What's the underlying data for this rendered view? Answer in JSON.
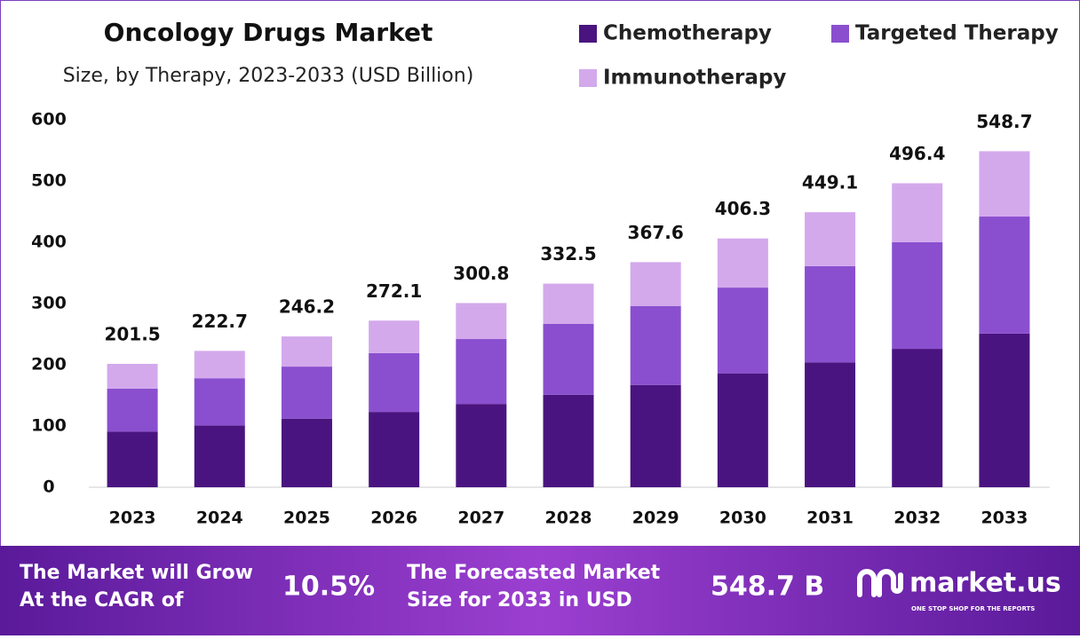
{
  "chart_data": {
    "type": "stacked-bar",
    "title": "Oncology Drugs Market",
    "subtitle": "Size, by Therapy, 2023-2033 (USD Billion)",
    "categories": [
      "2023",
      "2024",
      "2025",
      "2026",
      "2027",
      "2028",
      "2029",
      "2030",
      "2031",
      "2032",
      "2033"
    ],
    "series": [
      {
        "name": "Chemotherapy",
        "color": "#4a1480",
        "values": [
          91,
          101,
          112,
          123,
          136,
          151,
          167,
          186,
          204,
          226,
          251
        ]
      },
      {
        "name": "Targeted Therapy",
        "color": "#8a4fcf",
        "values": [
          70,
          77,
          85,
          96,
          106,
          116,
          129,
          140,
          157,
          174,
          191
        ]
      },
      {
        "name": "Immunotherapy",
        "color": "#d3a9ec",
        "values": [
          40.5,
          44.7,
          49.2,
          53.1,
          58.8,
          65.5,
          71.6,
          80.3,
          88.1,
          96.4,
          106.7
        ]
      }
    ],
    "totals": [
      201.5,
      222.7,
      246.2,
      272.1,
      300.8,
      332.5,
      367.6,
      406.3,
      449.1,
      496.4,
      548.7
    ],
    "ylim": [
      0,
      600
    ],
    "yticks": [
      0,
      100,
      200,
      300,
      400,
      500,
      600
    ],
    "grid": false,
    "legend": "top-right"
  },
  "footer": {
    "cagr_text": [
      "The Market will Grow",
      "At the CAGR of"
    ],
    "cagr": "10.5%",
    "forecast_text": [
      "The Forecasted Market",
      "Size for 2033 in USD"
    ],
    "forecast": "548.7 B",
    "brand": "market.us",
    "tagline": "ONE STOP SHOP FOR THE REPORTS"
  }
}
